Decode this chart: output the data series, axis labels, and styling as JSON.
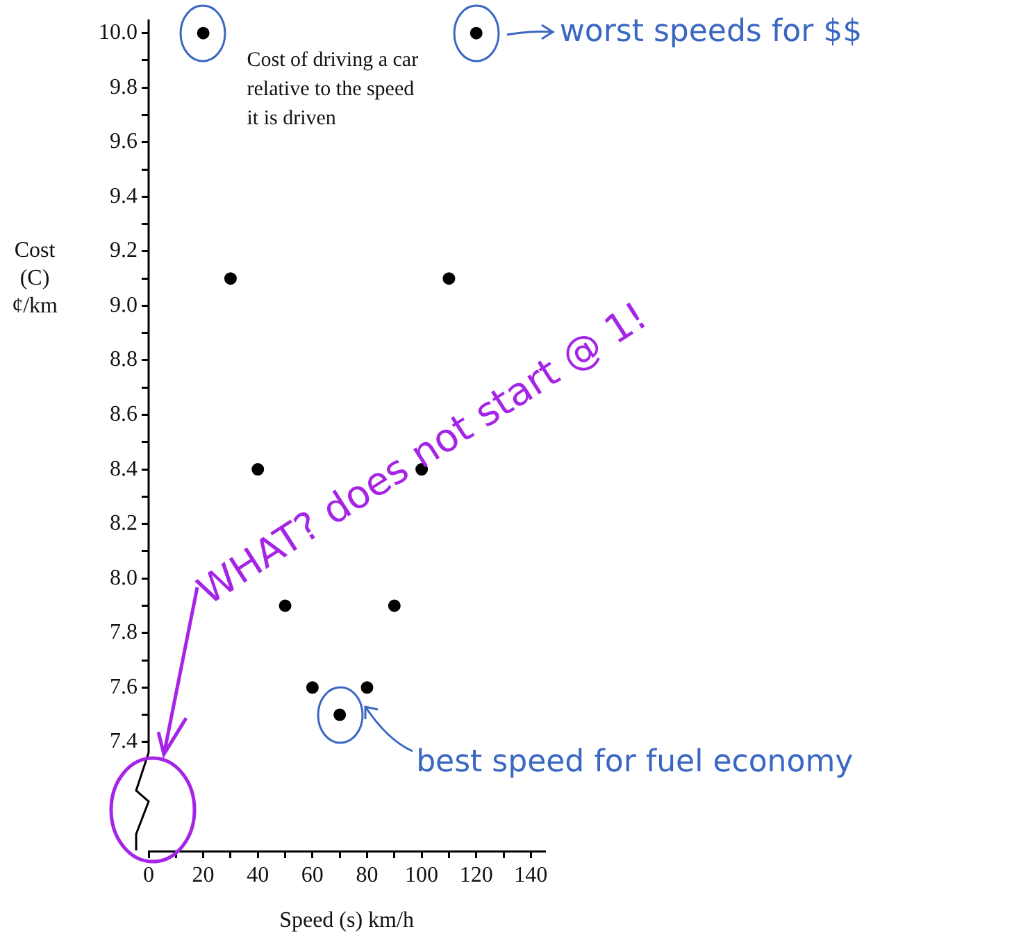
{
  "chart_data": {
    "type": "scatter",
    "title": "Cost of driving a car relative to the speed it is driven",
    "xlabel": "Speed (s) km/h",
    "ylabel": "Cost (C) ¢/km",
    "x": [
      20,
      30,
      40,
      50,
      60,
      70,
      80,
      90,
      100,
      110,
      120
    ],
    "values": [
      10.0,
      9.1,
      8.4,
      7.9,
      7.6,
      7.5,
      7.6,
      7.9,
      8.4,
      9.1,
      10.0
    ],
    "color": "#000000",
    "marker": "circle",
    "grid": false,
    "legend": false,
    "xlim": [
      0,
      145
    ],
    "xticks": [
      0,
      {
        "value": 10,
        "label": null
      },
      20,
      {
        "value": 30,
        "label": null
      },
      40,
      {
        "value": 50,
        "label": null
      },
      60,
      {
        "value": 70,
        "label": null
      },
      80,
      {
        "value": 90,
        "label": null
      },
      100,
      {
        "value": 110,
        "label": null
      },
      120,
      {
        "value": 130,
        "label": null
      },
      140
    ],
    "ylim": [
      7.0,
      10.05
    ],
    "yticks": [
      7.4,
      {
        "value": 7.5,
        "label": null
      },
      7.6,
      {
        "value": 7.7,
        "label": null
      },
      7.8,
      {
        "value": 7.9,
        "label": null
      },
      {
        "value": 8,
        "label": "8.0"
      },
      {
        "value": 8.1,
        "label": null
      },
      8.2,
      {
        "value": 8.3,
        "label": null
      },
      8.4,
      {
        "value": 8.5,
        "label": null
      },
      8.6,
      {
        "value": 8.7,
        "label": null
      },
      8.8,
      {
        "value": 8.9,
        "label": null
      },
      {
        "value": 9,
        "label": "9.0"
      },
      {
        "value": 9.1,
        "label": null
      },
      9.2,
      {
        "value": 9.3,
        "label": null
      },
      9.4,
      {
        "value": 9.5,
        "label": null
      },
      9.6,
      {
        "value": 9.7,
        "label": null
      },
      9.8,
      {
        "value": 9.9,
        "label": null
      },
      {
        "value": 10,
        "label": "10.0"
      }
    ],
    "annotations": [
      {
        "text": "worst speeds for $$",
        "x": 120,
        "y": 10.0
      },
      {
        "text": "best speed for fuel economy",
        "x": 70,
        "y": 7.5
      },
      "WHAT? does not start @ 1!"
    ]
  }
}
